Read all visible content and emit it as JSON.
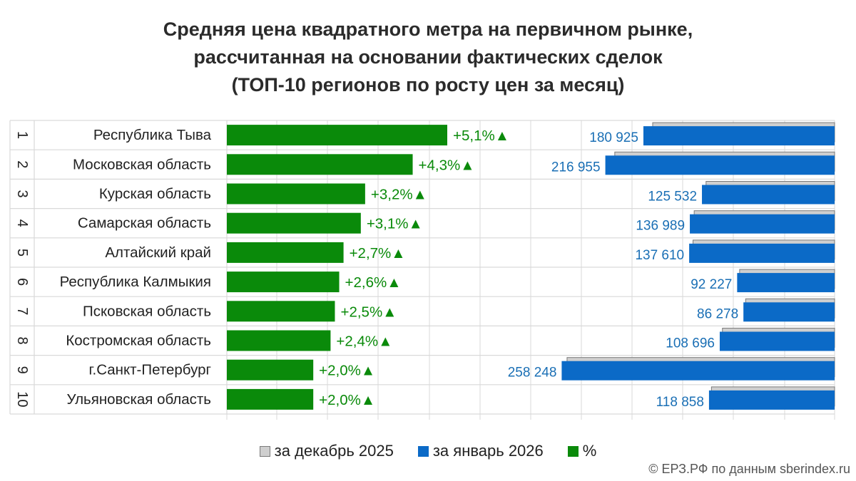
{
  "title": {
    "line1": "Средняя цена квадратного метра на первичном рынке,",
    "line2": "рассчитанная на основании фактических сделок",
    "line3": "(ТОП-10 регионов по росту цен за месяц)"
  },
  "colors": {
    "green": "#0a8a0a",
    "blue": "#0b6ac7",
    "gray": "#cfcfcf",
    "grid": "#d9d9d9",
    "value_text": "#1a6fb5"
  },
  "chart_data": {
    "type": "bar",
    "title": "Средняя цена квадратного метра на первичном рынке, рассчитанная на основании фактических сделок (ТОП-10 регионов по росту цен за месяц)",
    "ranks": [
      "1",
      "2",
      "3",
      "4",
      "5",
      "6",
      "7",
      "8",
      "9",
      "10"
    ],
    "categories": [
      "Республика Тыва",
      "Московская область",
      "Курская область",
      "Самарская область",
      "Алтайский край",
      "Республика Калмыкия",
      "Псковская область",
      "Костромская область",
      "г.Санкт-Петербург",
      "Ульяновская область"
    ],
    "growth_pct": [
      5.1,
      4.3,
      3.2,
      3.1,
      2.7,
      2.6,
      2.5,
      2.4,
      2.0,
      2.0
    ],
    "growth_labels": [
      "+5,1%",
      "+4,3%",
      "+3,2%",
      "+3,1%",
      "+2,7%",
      "+2,6%",
      "+2,5%",
      "+2,4%",
      "+2,0%",
      "+2,0%"
    ],
    "growth_marker": "▲",
    "series": [
      {
        "name": "за декабрь 2025",
        "values": [
          172150,
          208010,
          121640,
          132870,
          133990,
          89880,
          84170,
          106140,
          253170,
          116530
        ]
      },
      {
        "name": "за январь 2026",
        "values": [
          180925,
          216955,
          125532,
          136989,
          137610,
          92227,
          86278,
          108696,
          258248,
          118858
        ]
      },
      {
        "name": "%",
        "values": [
          5.1,
          4.3,
          3.2,
          3.1,
          2.7,
          2.6,
          2.5,
          2.4,
          2.0,
          2.0
        ]
      }
    ],
    "price_labels": [
      "180 925",
      "216 955",
      "125 532",
      "136 989",
      "137 610",
      "92 227",
      "86 278",
      "108 696",
      "258 248",
      "118 858"
    ],
    "pct_axis_range": [
      0,
      8.5
    ],
    "price_axis_range": [
      0,
      270000
    ],
    "legend_position": "bottom"
  },
  "legend": {
    "dec": "за декабрь 2025",
    "jan": "за январь 2026",
    "pct": "%"
  },
  "footer": "© ЕРЗ.РФ по данным sberindex.ru"
}
